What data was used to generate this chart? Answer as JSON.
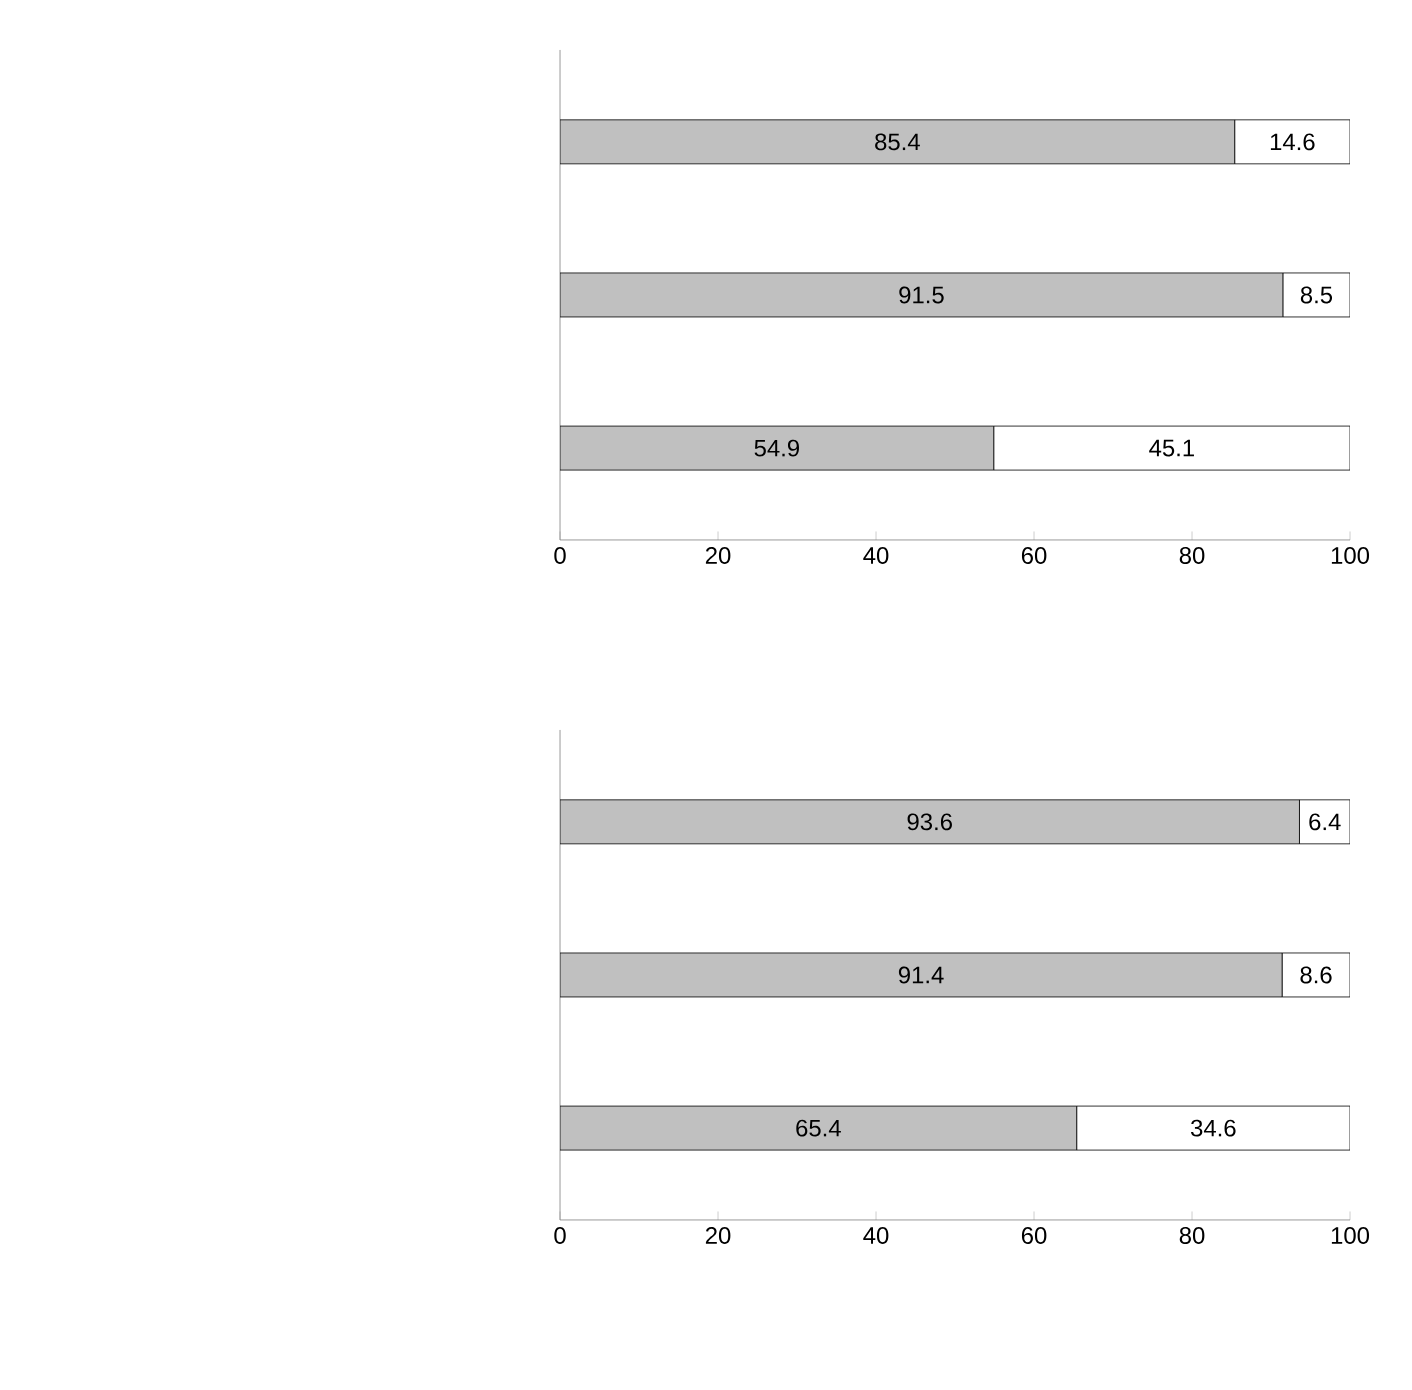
{
  "chart_data": [
    {
      "type": "bar",
      "orientation": "horizontal",
      "stacked": true,
      "categories": [
        null,
        null,
        null
      ],
      "series": [
        {
          "color": "#c0c0c0",
          "values": [
            85.4,
            91.5,
            54.9
          ],
          "value_labels": [
            "85.4",
            "91.5",
            "54.9"
          ]
        },
        {
          "color": "#ffffff",
          "values": [
            14.6,
            8.5,
            45.1
          ],
          "value_labels": [
            "14.6",
            "8.5",
            "45.1"
          ]
        }
      ],
      "xlim": [
        0,
        100
      ],
      "xticks": [
        0,
        20,
        40,
        60,
        80,
        100
      ]
    },
    {
      "type": "bar",
      "orientation": "horizontal",
      "stacked": true,
      "categories": [
        null,
        null,
        null
      ],
      "series": [
        {
          "color": "#c0c0c0",
          "values": [
            93.6,
            91.4,
            65.4
          ],
          "value_labels": [
            "93.6",
            "91.4",
            "65.4"
          ]
        },
        {
          "color": "#ffffff",
          "values": [
            6.4,
            8.6,
            34.6
          ],
          "value_labels": [
            "6.4",
            "8.6",
            "34.6"
          ]
        }
      ],
      "xlim": [
        0,
        100
      ],
      "xticks": [
        0,
        20,
        40,
        60,
        80,
        100
      ]
    }
  ]
}
